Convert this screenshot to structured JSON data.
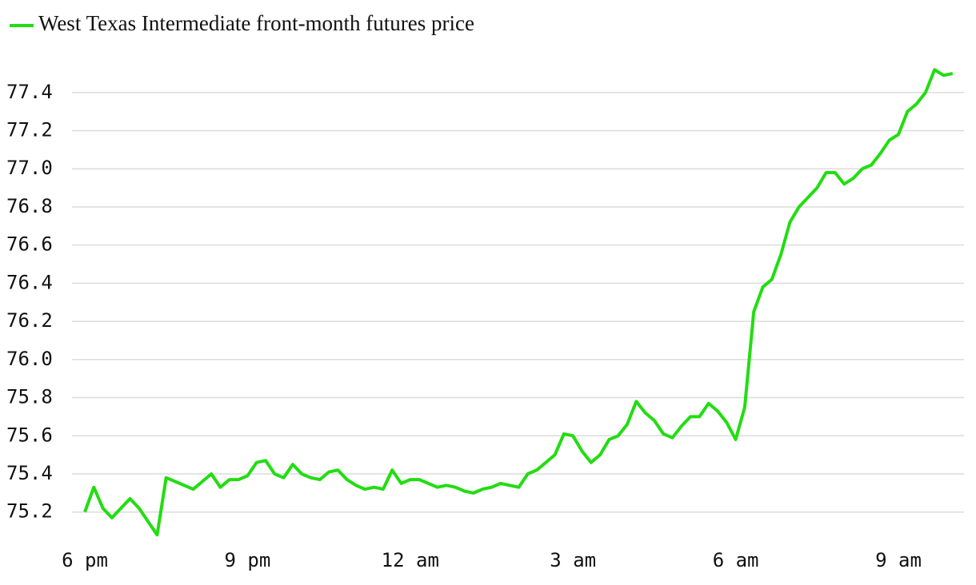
{
  "chart_data": {
    "type": "line",
    "categories": [
      "6 pm",
      null,
      null,
      null,
      null,
      null,
      null,
      null,
      null,
      null,
      null,
      null,
      null,
      null,
      null,
      null,
      null,
      null,
      "9 pm",
      null,
      null,
      null,
      null,
      null,
      null,
      null,
      null,
      null,
      null,
      null,
      null,
      null,
      null,
      null,
      null,
      null,
      "12 am",
      null,
      null,
      null,
      null,
      null,
      null,
      null,
      null,
      null,
      null,
      null,
      null,
      null,
      null,
      null,
      null,
      null,
      "3 am",
      null,
      null,
      null,
      null,
      null,
      null,
      null,
      null,
      null,
      null,
      null,
      null,
      null,
      null,
      null,
      null,
      null,
      "6 am",
      null,
      null,
      null,
      null,
      null,
      null,
      null,
      null,
      null,
      null,
      null,
      null,
      null,
      null,
      null,
      null,
      null,
      "9 am",
      null,
      null,
      null,
      null,
      null,
      null
    ],
    "series": [
      {
        "name": "West Texas Intermediate front-month futures price",
        "color": "#22dd11",
        "values": [
          75.2,
          75.33,
          75.22,
          75.17,
          75.22,
          75.27,
          75.22,
          75.15,
          75.08,
          75.38,
          75.36,
          75.34,
          75.32,
          75.36,
          75.4,
          75.33,
          75.37,
          75.37,
          75.39,
          75.46,
          75.47,
          75.4,
          75.38,
          75.45,
          75.4,
          75.38,
          75.37,
          75.41,
          75.42,
          75.37,
          75.34,
          75.32,
          75.33,
          75.32,
          75.42,
          75.35,
          75.37,
          75.37,
          75.35,
          75.33,
          75.34,
          75.33,
          75.31,
          75.3,
          75.32,
          75.33,
          75.35,
          75.34,
          75.33,
          75.4,
          75.42,
          75.46,
          75.5,
          75.61,
          75.6,
          75.52,
          75.46,
          75.5,
          75.58,
          75.6,
          75.66,
          75.78,
          75.72,
          75.68,
          75.61,
          75.59,
          75.65,
          75.7,
          75.7,
          75.77,
          75.73,
          75.67,
          75.58,
          75.75,
          76.25,
          76.38,
          76.42,
          76.55,
          76.72,
          76.8,
          76.85,
          76.9,
          76.98,
          76.98,
          76.92,
          76.95,
          77.0,
          77.02,
          77.08,
          77.15,
          77.18,
          77.3,
          77.34,
          77.4,
          77.52,
          77.49,
          77.5
        ]
      }
    ],
    "ylim": [
      75.05,
      77.55
    ],
    "yticks": [
      75.2,
      75.4,
      75.6,
      75.8,
      {
        "value": 76,
        "label": "76.0"
      },
      76.2,
      76.4,
      76.6,
      76.8,
      {
        "value": 77,
        "label": "77.0"
      },
      77.2,
      77.4
    ],
    "grid": true
  }
}
